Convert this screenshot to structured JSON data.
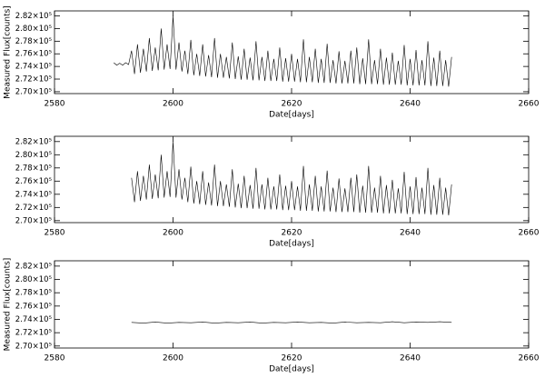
{
  "chart_data": [
    {
      "type": "line",
      "xlabel": "Date[days]",
      "ylabel": "Measured Flux[counts]",
      "xlim": [
        2580,
        2660
      ],
      "xticks": [
        2580,
        2600,
        2620,
        2640,
        2660
      ],
      "ylim": [
        269700,
        282800
      ],
      "yticks": [
        {
          "value": 270000,
          "label": "2.70×10⁵"
        },
        {
          "value": 272000,
          "label": "2.72×10⁵"
        },
        {
          "value": 274000,
          "label": "2.74×10⁵"
        },
        {
          "value": 276000,
          "label": "2.76×10⁵"
        },
        {
          "value": 278000,
          "label": "2.78×10⁵"
        },
        {
          "value": 280000,
          "label": "2.80×10⁵"
        },
        {
          "value": 282000,
          "label": "2.82×10⁵"
        }
      ],
      "series": [
        {
          "color": "#000000",
          "x": [
            2590,
            2590.5,
            2591,
            2591.5,
            2592,
            2592.5,
            2593,
            2593.5,
            2594,
            2594.5,
            2595,
            2595.5,
            2596,
            2596.5,
            2597,
            2597.5,
            2598,
            2598.5,
            2599,
            2599.5,
            2600,
            2600.5,
            2601,
            2601.5,
            2602,
            2602.5,
            2603,
            2603.5,
            2604,
            2604.5,
            2605,
            2605.5,
            2606,
            2606.5,
            2607,
            2607.5,
            2608,
            2608.5,
            2609,
            2609.5,
            2610,
            2610.5,
            2611,
            2611.5,
            2612,
            2612.5,
            2613,
            2613.5,
            2614,
            2614.5,
            2615,
            2615.5,
            2616,
            2616.5,
            2617,
            2617.5,
            2618,
            2618.5,
            2619,
            2619.5,
            2620,
            2620.5,
            2621,
            2621.5,
            2622,
            2622.5,
            2623,
            2623.5,
            2624,
            2624.5,
            2625,
            2625.5,
            2626,
            2626.5,
            2627,
            2627.5,
            2628,
            2628.5,
            2629,
            2629.5,
            2630,
            2630.5,
            2631,
            2631.5,
            2632,
            2632.5,
            2633,
            2633.5,
            2634,
            2634.5,
            2635,
            2635.5,
            2636,
            2636.5,
            2637,
            2637.5,
            2638,
            2638.5,
            2639,
            2639.5,
            2640,
            2640.5,
            2641,
            2641.5,
            2642,
            2642.5,
            2643,
            2643.5,
            2644,
            2644.5,
            2645,
            2645.5,
            2646,
            2646.5,
            2647
          ],
          "values": [
            274600,
            274200,
            274500,
            274200,
            274600,
            274300,
            276500,
            272800,
            277500,
            273000,
            276800,
            273200,
            278500,
            273300,
            277000,
            273400,
            280000,
            273500,
            277500,
            273600,
            282000,
            273500,
            277800,
            273200,
            276500,
            272800,
            278200,
            272600,
            276000,
            272500,
            277500,
            272400,
            275800,
            272300,
            278500,
            272200,
            276000,
            272200,
            275500,
            272100,
            277800,
            272000,
            275600,
            271900,
            276800,
            271900,
            275400,
            271800,
            278000,
            271800,
            275500,
            271700,
            276500,
            271700,
            275200,
            271700,
            277000,
            271600,
            275300,
            271600,
            276000,
            271600,
            275200,
            271500,
            278300,
            271500,
            275500,
            271500,
            276800,
            271400,
            275200,
            271400,
            277600,
            271400,
            275000,
            271300,
            276400,
            271300,
            274900,
            271300,
            276500,
            271300,
            277000,
            271200,
            275300,
            271200,
            278300,
            271200,
            275000,
            271200,
            276800,
            271100,
            275400,
            271100,
            276200,
            271100,
            274900,
            271100,
            277400,
            271000,
            275200,
            271000,
            276600,
            271000,
            275000,
            271000,
            278000,
            270900,
            275400,
            270900,
            276500,
            270900,
            275000,
            270800,
            275500
          ]
        }
      ]
    },
    {
      "type": "line",
      "xlabel": "Date[days]",
      "xlim": [
        2580,
        2660
      ],
      "xticks": [
        2580,
        2600,
        2620,
        2640,
        2660
      ],
      "ylim": [
        269700,
        282800
      ],
      "yticks": [
        {
          "value": 270000,
          "label": "2.70×10⁵"
        },
        {
          "value": 272000,
          "label": "2.72×10⁵"
        },
        {
          "value": 274000,
          "label": "2.74×10⁵"
        },
        {
          "value": 276000,
          "label": "2.76×10⁵"
        },
        {
          "value": 278000,
          "label": "2.78×10⁵"
        },
        {
          "value": 280000,
          "label": "2.80×10⁵"
        },
        {
          "value": 282000,
          "label": "2.82×10⁵"
        }
      ],
      "series": [
        {
          "color": "#000000",
          "x": [
            2593,
            2593.5,
            2594,
            2594.5,
            2595,
            2595.5,
            2596,
            2596.5,
            2597,
            2597.5,
            2598,
            2598.5,
            2599,
            2599.5,
            2600,
            2600.5,
            2601,
            2601.5,
            2602,
            2602.5,
            2603,
            2603.5,
            2604,
            2604.5,
            2605,
            2605.5,
            2606,
            2606.5,
            2607,
            2607.5,
            2608,
            2608.5,
            2609,
            2609.5,
            2610,
            2610.5,
            2611,
            2611.5,
            2612,
            2612.5,
            2613,
            2613.5,
            2614,
            2614.5,
            2615,
            2615.5,
            2616,
            2616.5,
            2617,
            2617.5,
            2618,
            2618.5,
            2619,
            2619.5,
            2620,
            2620.5,
            2621,
            2621.5,
            2622,
            2622.5,
            2623,
            2623.5,
            2624,
            2624.5,
            2625,
            2625.5,
            2626,
            2626.5,
            2627,
            2627.5,
            2628,
            2628.5,
            2629,
            2629.5,
            2630,
            2630.5,
            2631,
            2631.5,
            2632,
            2632.5,
            2633,
            2633.5,
            2634,
            2634.5,
            2635,
            2635.5,
            2636,
            2636.5,
            2637,
            2637.5,
            2638,
            2638.5,
            2639,
            2639.5,
            2640,
            2640.5,
            2641,
            2641.5,
            2642,
            2642.5,
            2643,
            2643.5,
            2644,
            2644.5,
            2645,
            2645.5,
            2646,
            2646.5,
            2647
          ],
          "values": [
            276500,
            272800,
            277500,
            273000,
            276800,
            273200,
            278500,
            273300,
            277000,
            273400,
            280000,
            273500,
            277500,
            273600,
            282000,
            273500,
            277800,
            273200,
            276500,
            272800,
            278200,
            272600,
            276000,
            272500,
            277500,
            272400,
            275800,
            272300,
            278500,
            272200,
            276000,
            272200,
            275500,
            272100,
            277800,
            272000,
            275600,
            271900,
            276800,
            271900,
            275400,
            271800,
            278000,
            271800,
            275500,
            271700,
            276500,
            271700,
            275200,
            271700,
            277000,
            271600,
            275300,
            271600,
            276000,
            271600,
            275200,
            271500,
            278300,
            271500,
            275500,
            271500,
            276800,
            271400,
            275200,
            271400,
            277600,
            271400,
            275000,
            271300,
            276400,
            271300,
            274900,
            271300,
            276500,
            271300,
            277000,
            271200,
            275300,
            271200,
            278300,
            271200,
            275000,
            271200,
            276800,
            271100,
            275400,
            271100,
            276200,
            271100,
            274900,
            271100,
            277400,
            271000,
            275200,
            271000,
            276600,
            271000,
            275000,
            271000,
            278000,
            270900,
            275400,
            270900,
            276500,
            270900,
            275000,
            270800,
            275500
          ]
        }
      ]
    },
    {
      "type": "line",
      "xlabel": "Date[days]",
      "ylabel": "Measured Flux[counts]",
      "xlim": [
        2580,
        2660
      ],
      "xticks": [
        2580,
        2600,
        2620,
        2640,
        2660
      ],
      "ylim": [
        269700,
        282800
      ],
      "yticks": [
        {
          "value": 270000,
          "label": "2.70×10⁵"
        },
        {
          "value": 272000,
          "label": "2.72×10⁵"
        },
        {
          "value": 274000,
          "label": "2.74×10⁵"
        },
        {
          "value": 276000,
          "label": "2.76×10⁵"
        },
        {
          "value": 278000,
          "label": "2.78×10⁵"
        },
        {
          "value": 280000,
          "label": "2.80×10⁵"
        },
        {
          "value": 282000,
          "label": "2.82×10⁵"
        }
      ],
      "series": [
        {
          "color": "#000000",
          "x": [
            2593,
            2595,
            2597,
            2599,
            2601,
            2603,
            2605,
            2607,
            2609,
            2611,
            2613,
            2615,
            2617,
            2619,
            2621,
            2623,
            2625,
            2627,
            2629,
            2631,
            2633,
            2635,
            2637,
            2639,
            2641,
            2643,
            2645,
            2647
          ],
          "values": [
            273550,
            273450,
            273600,
            273450,
            273550,
            273500,
            273600,
            273450,
            273550,
            273500,
            273600,
            273450,
            273550,
            273500,
            273600,
            273500,
            273550,
            273450,
            273600,
            273500,
            273550,
            273500,
            273650,
            273500,
            273600,
            273550,
            273650,
            273550
          ]
        }
      ]
    }
  ]
}
